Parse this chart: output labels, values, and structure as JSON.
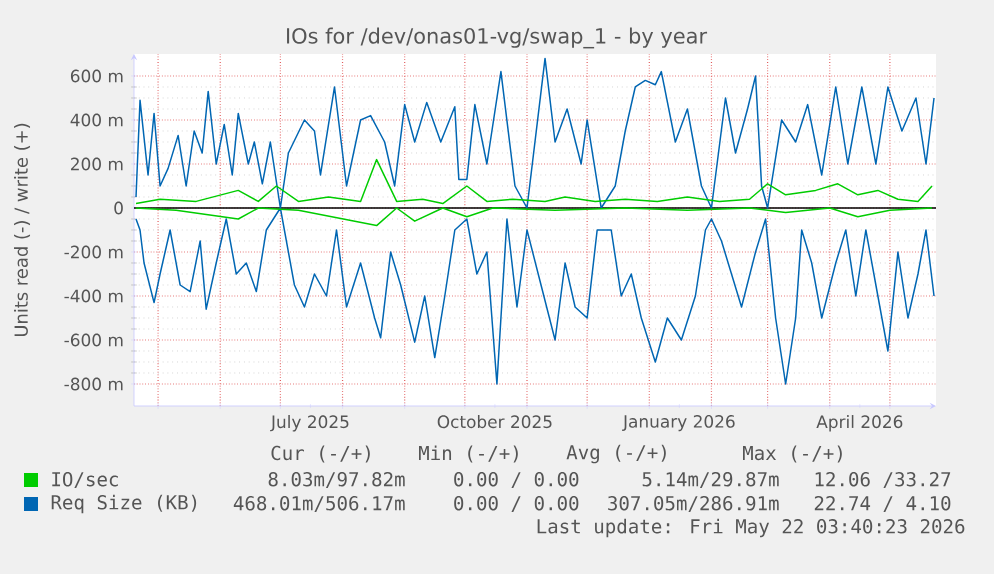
{
  "chart_data": {
    "type": "line",
    "title": "IOs for /dev/onas01-vg/swap_1 - by year",
    "ylabel": "Units read (-) / write (+)",
    "xlim": [
      "2025-04-19",
      "2026-05-24"
    ],
    "xticks": [
      {
        "value": "2025-05-01",
        "label": null
      },
      {
        "value": "2025-06-01",
        "label": null
      },
      {
        "value": "2025-07-01",
        "label": null
      },
      {
        "value": "2025-07-16",
        "label": "July 2025"
      },
      {
        "value": "2025-08-01",
        "label": null
      },
      {
        "value": "2025-09-01",
        "label": null
      },
      {
        "value": "2025-10-01",
        "label": null
      },
      {
        "value": "2025-10-16",
        "label": "October 2025"
      },
      {
        "value": "2025-11-01",
        "label": null
      },
      {
        "value": "2025-12-01",
        "label": null
      },
      {
        "value": "2026-01-01",
        "label": null
      },
      {
        "value": "2026-01-16",
        "label": "January 2026"
      },
      {
        "value": "2026-02-01",
        "label": null
      },
      {
        "value": "2026-03-01",
        "label": null
      },
      {
        "value": "2026-04-01",
        "label": null
      },
      {
        "value": "2026-04-16",
        "label": "April 2026"
      },
      {
        "value": "2026-05-01",
        "label": null
      }
    ],
    "ylim": [
      -900,
      700
    ],
    "yticks": [
      {
        "value": -800,
        "label": "-800 m"
      },
      {
        "value": -600,
        "label": "-600 m"
      },
      {
        "value": -400,
        "label": "-400 m"
      },
      {
        "value": -200,
        "label": "-200 m"
      },
      0,
      {
        "value": 200,
        "label": "200 m"
      },
      {
        "value": 400,
        "label": "400 m"
      },
      {
        "value": 600,
        "label": "600 m"
      }
    ],
    "grid": true,
    "legend": "bottom",
    "ref_lines": [
      {
        "axis": "y",
        "value": 0,
        "color": "#000000"
      }
    ],
    "series": [
      {
        "color": "#0066b3",
        "x": [
          "2025-04-20",
          "2025-04-22",
          "2025-04-24",
          "2025-04-29",
          "2025-05-02",
          "2025-05-07",
          "2025-05-12",
          "2025-05-17",
          "2025-05-22",
          "2025-05-25",
          "2025-05-30",
          "2025-06-04",
          "2025-06-09",
          "2025-06-14",
          "2025-06-19",
          "2025-06-24",
          "2025-07-01",
          "2025-07-08",
          "2025-07-13",
          "2025-07-18",
          "2025-07-24",
          "2025-07-29",
          "2025-08-03",
          "2025-08-10",
          "2025-08-17",
          "2025-08-20",
          "2025-08-25",
          "2025-08-30",
          "2025-09-06",
          "2025-09-11",
          "2025-09-16",
          "2025-09-21",
          "2025-09-26",
          "2025-10-02",
          "2025-10-07",
          "2025-10-12",
          "2025-10-17",
          "2025-10-22",
          "2025-10-27",
          "2025-11-01",
          "2025-11-08",
          "2025-11-15",
          "2025-11-20",
          "2025-11-25",
          "2025-12-01",
          "2025-12-06",
          "2025-12-13",
          "2025-12-18",
          "2025-12-23",
          "2025-12-28",
          "2026-01-04",
          "2026-01-10",
          "2026-01-17",
          "2026-01-24",
          "2026-01-29",
          "2026-02-01",
          "2026-02-06",
          "2026-02-11",
          "2026-02-16",
          "2026-02-23",
          "2026-02-28",
          "2026-03-05",
          "2026-03-10",
          "2026-03-15",
          "2026-03-18",
          "2026-03-23",
          "2026-03-28",
          "2026-04-04",
          "2026-04-09",
          "2026-04-14",
          "2026-04-19",
          "2026-04-24",
          "2026-04-30",
          "2026-05-05",
          "2026-05-10",
          "2026-05-15",
          "2026-05-19",
          "2026-05-23"
        ],
        "values": [
          -50,
          -100,
          -250,
          -430,
          -300,
          -100,
          -350,
          -380,
          -150,
          -460,
          -250,
          -50,
          -300,
          -250,
          -380,
          -100,
          0,
          -350,
          -450,
          -300,
          -400,
          -100,
          -450,
          -250,
          -500,
          -590,
          -200,
          -350,
          -610,
          -400,
          -680,
          -400,
          -100,
          -50,
          -300,
          -200,
          -800,
          -50,
          -450,
          -100,
          -350,
          -600,
          -250,
          -450,
          -500,
          -100,
          -100,
          -400,
          -300,
          -500,
          -700,
          -500,
          -600,
          -400,
          -100,
          -50,
          -150,
          -300,
          -450,
          -200,
          -50,
          -500,
          -800,
          -500,
          -100,
          -250,
          -500,
          -250,
          -100,
          -400,
          -100,
          -350,
          -650,
          -200,
          -500,
          -300,
          -100,
          -400
        ]
      },
      {
        "name": "Req Size (KB)",
        "color": "#0066b3",
        "x": [
          "2025-04-20",
          "2025-04-22",
          "2025-04-26",
          "2025-04-29",
          "2025-05-02",
          "2025-05-06",
          "2025-05-11",
          "2025-05-15",
          "2025-05-19",
          "2025-05-23",
          "2025-05-26",
          "2025-05-30",
          "2025-06-03",
          "2025-06-07",
          "2025-06-10",
          "2025-06-15",
          "2025-06-18",
          "2025-06-22",
          "2025-06-26",
          "2025-07-01",
          "2025-07-05",
          "2025-07-13",
          "2025-07-18",
          "2025-07-21",
          "2025-07-28",
          "2025-08-03",
          "2025-08-10",
          "2025-08-15",
          "2025-08-22",
          "2025-08-27",
          "2025-09-01",
          "2025-09-06",
          "2025-09-12",
          "2025-09-19",
          "2025-09-26",
          "2025-09-28",
          "2025-10-02",
          "2025-10-06",
          "2025-10-12",
          "2025-10-19",
          "2025-10-26",
          "2025-11-01",
          "2025-11-10",
          "2025-11-15",
          "2025-11-21",
          "2025-11-28",
          "2025-12-01",
          "2025-12-08",
          "2025-12-15",
          "2025-12-20",
          "2025-12-25",
          "2025-12-30",
          "2026-01-04",
          "2026-01-07",
          "2026-01-14",
          "2026-01-20",
          "2026-01-27",
          "2026-02-01",
          "2026-02-08",
          "2026-02-13",
          "2026-02-19",
          "2026-02-23",
          "2026-02-26",
          "2026-03-01",
          "2026-03-08",
          "2026-03-15",
          "2026-03-21",
          "2026-03-28",
          "2026-04-04",
          "2026-04-10",
          "2026-04-17",
          "2026-04-24",
          "2026-04-30",
          "2026-05-07",
          "2026-05-14",
          "2026-05-19",
          "2026-05-23"
        ],
        "values": [
          50,
          490,
          150,
          430,
          100,
          180,
          330,
          100,
          350,
          250,
          530,
          200,
          380,
          150,
          430,
          200,
          300,
          110,
          300,
          0,
          250,
          400,
          350,
          150,
          550,
          100,
          400,
          420,
          300,
          100,
          470,
          300,
          480,
          300,
          460,
          130,
          130,
          470,
          200,
          620,
          100,
          0,
          680,
          300,
          450,
          200,
          400,
          0,
          100,
          350,
          550,
          580,
          560,
          620,
          300,
          450,
          100,
          0,
          500,
          250,
          450,
          600,
          100,
          0,
          400,
          300,
          470,
          150,
          550,
          200,
          550,
          200,
          550,
          350,
          500,
          200,
          500
        ]
      },
      {
        "color": "#00cc00",
        "x": [
          "2025-04-20",
          "2025-05-10",
          "2025-06-10",
          "2025-06-20",
          "2025-07-10",
          "2025-08-18",
          "2025-08-28",
          "2025-09-06",
          "2025-09-20",
          "2025-10-02",
          "2025-10-15",
          "2025-11-15",
          "2025-12-20",
          "2026-01-20",
          "2026-02-20",
          "2026-03-10",
          "2026-04-01",
          "2026-04-15",
          "2026-05-01",
          "2026-05-22"
        ],
        "values": [
          0,
          -10,
          -50,
          0,
          -10,
          -80,
          0,
          -60,
          0,
          -40,
          0,
          -10,
          0,
          -10,
          0,
          -20,
          0,
          -40,
          -10,
          0
        ]
      },
      {
        "name": "IO/sec",
        "color": "#00cc00",
        "x": [
          "2025-04-20",
          "2025-05-02",
          "2025-05-20",
          "2025-06-10",
          "2025-06-20",
          "2025-06-29",
          "2025-07-10",
          "2025-07-25",
          "2025-08-10",
          "2025-08-18",
          "2025-08-28",
          "2025-09-10",
          "2025-09-20",
          "2025-10-02",
          "2025-10-12",
          "2025-10-25",
          "2025-11-10",
          "2025-11-20",
          "2025-12-05",
          "2025-12-20",
          "2026-01-05",
          "2026-01-20",
          "2026-02-05",
          "2026-02-20",
          "2026-03-01",
          "2026-03-10",
          "2026-03-25",
          "2026-04-05",
          "2026-04-15",
          "2026-04-25",
          "2026-05-05",
          "2026-05-15",
          "2026-05-22"
        ],
        "values": [
          20,
          40,
          30,
          80,
          30,
          100,
          30,
          50,
          30,
          220,
          30,
          40,
          20,
          100,
          30,
          40,
          30,
          50,
          30,
          40,
          30,
          50,
          30,
          40,
          110,
          60,
          80,
          110,
          60,
          80,
          40,
          30,
          100
        ]
      }
    ],
    "annotations": [
      "Cur (-/+)",
      "Min (-/+)",
      "Avg (-/+)",
      "Max (-/+)",
      "8.03m/97.82m",
      "0.00 / 0.00",
      "5.14m/29.87m",
      "12.06 /33.27",
      "468.01m/506.17m",
      "0.00 / 0.00",
      "307.05m/286.91m",
      "22.74 / 4.10",
      "Last update: Fri May 22 03:40:23 2026"
    ]
  }
}
